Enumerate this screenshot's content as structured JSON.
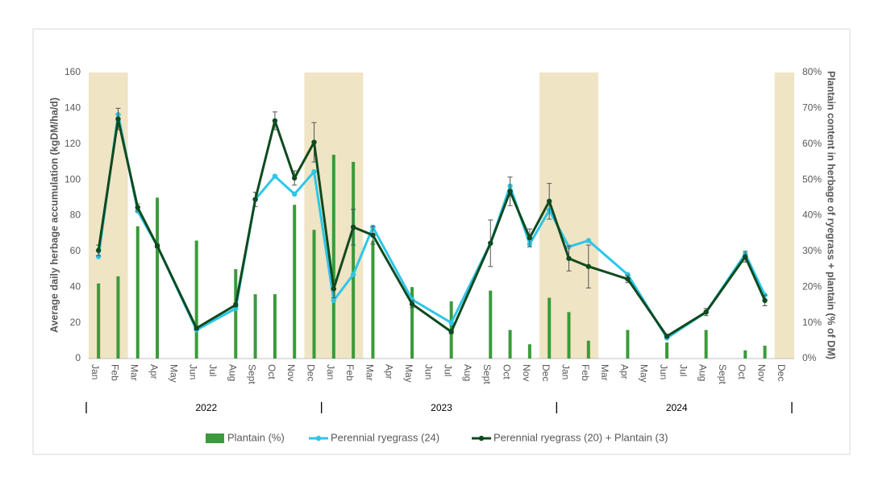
{
  "chart_data": {
    "type": "combo",
    "y_label": "Average daily herbage accumulation (kgDM/ha/d)",
    "y2_label": "Plantain content in herbage of ryegrass + plantain (% of DM)",
    "years": [
      "2022",
      "2023",
      "2024"
    ],
    "months": [
      "Jan",
      "Feb",
      "Mar",
      "Apr",
      "May",
      "Jun",
      "Jul",
      "Aug",
      "Sept",
      "Oct",
      "Nov",
      "Dec"
    ],
    "x": [
      "Jan 2022",
      "Feb 2022",
      "Mar 2022",
      "Apr 2022",
      "Jun 2022",
      "Aug 2022",
      "Sept 2022",
      "Oct 2022",
      "Nov 2022",
      "Dec 2022",
      "Jan 2023",
      "Feb 2023",
      "Mar 2023",
      "May 2023",
      "Jul 2023",
      "Sept 2023",
      "Oct 2023",
      "Nov 2023",
      "Dec 2023",
      "Jan 2024",
      "Feb 2024",
      "Apr 2024",
      "Jun 2024",
      "Aug 2024",
      "Oct 2024",
      "Nov 2024"
    ],
    "shaded": [
      {
        "from": "Jan 2022",
        "to": "Feb 2022"
      },
      {
        "from": "Dec 2022",
        "to": "Feb 2023"
      },
      {
        "from": "Dec 2023",
        "to": "Feb 2024"
      },
      {
        "from": "Dec 2024",
        "to": "Dec 2024"
      }
    ],
    "shade_color": "#efe4c4",
    "ylim": [
      0,
      160
    ],
    "yticks": [
      0,
      20,
      40,
      60,
      80,
      100,
      120,
      140,
      160
    ],
    "y2lim": [
      0,
      80
    ],
    "y2ticks": [
      {
        "value": 0,
        "label": "0%"
      },
      {
        "value": 10,
        "label": "10%"
      },
      {
        "value": 20,
        "label": "20%"
      },
      {
        "value": 30,
        "label": "30%"
      },
      {
        "value": 40,
        "label": "40%"
      },
      {
        "value": 50,
        "label": "50%"
      },
      {
        "value": 60,
        "label": "60%"
      },
      {
        "value": 70,
        "label": "70%"
      },
      {
        "value": 80,
        "label": "80%"
      }
    ],
    "series": [
      {
        "name": "Plantain (%)",
        "type": "bar",
        "axis": "y2",
        "color": "#3a9b3a",
        "values": [
          21,
          23,
          37,
          45,
          33,
          25,
          18,
          18,
          43,
          36,
          57,
          55,
          33,
          20,
          16,
          19,
          8,
          4,
          17,
          13,
          5,
          8,
          4.5,
          8,
          2.3,
          3.6
        ]
      },
      {
        "name": "Perennial ryegrass (24)",
        "type": "line",
        "color": "#2cc6e8",
        "values": [
          57,
          136.5,
          82.5,
          63,
          16,
          28,
          89,
          102,
          92,
          104.5,
          32.5,
          47,
          73.5,
          33,
          20,
          64.5,
          96.5,
          64,
          83,
          62.5,
          66,
          47,
          11.5,
          26,
          58.5,
          35.5
        ]
      },
      {
        "name": "Perennial ryegrass (20) + Plantain (3)",
        "type": "line",
        "color": "#0f4a1e",
        "values": [
          60.5,
          134,
          84.5,
          63,
          17,
          30,
          89,
          133,
          101,
          121,
          39,
          73.5,
          69,
          30.5,
          15,
          64.5,
          93.5,
          67.5,
          88,
          56,
          51.5,
          44.5,
          12.5,
          26,
          57,
          32.5
        ],
        "errors": [
          3,
          6,
          2,
          1,
          1,
          1,
          4,
          5,
          4,
          11,
          5,
          10,
          5,
          2,
          1,
          13,
          8,
          5,
          10,
          7,
          12,
          2,
          1,
          2,
          3,
          3
        ]
      }
    ],
    "grid": false
  }
}
